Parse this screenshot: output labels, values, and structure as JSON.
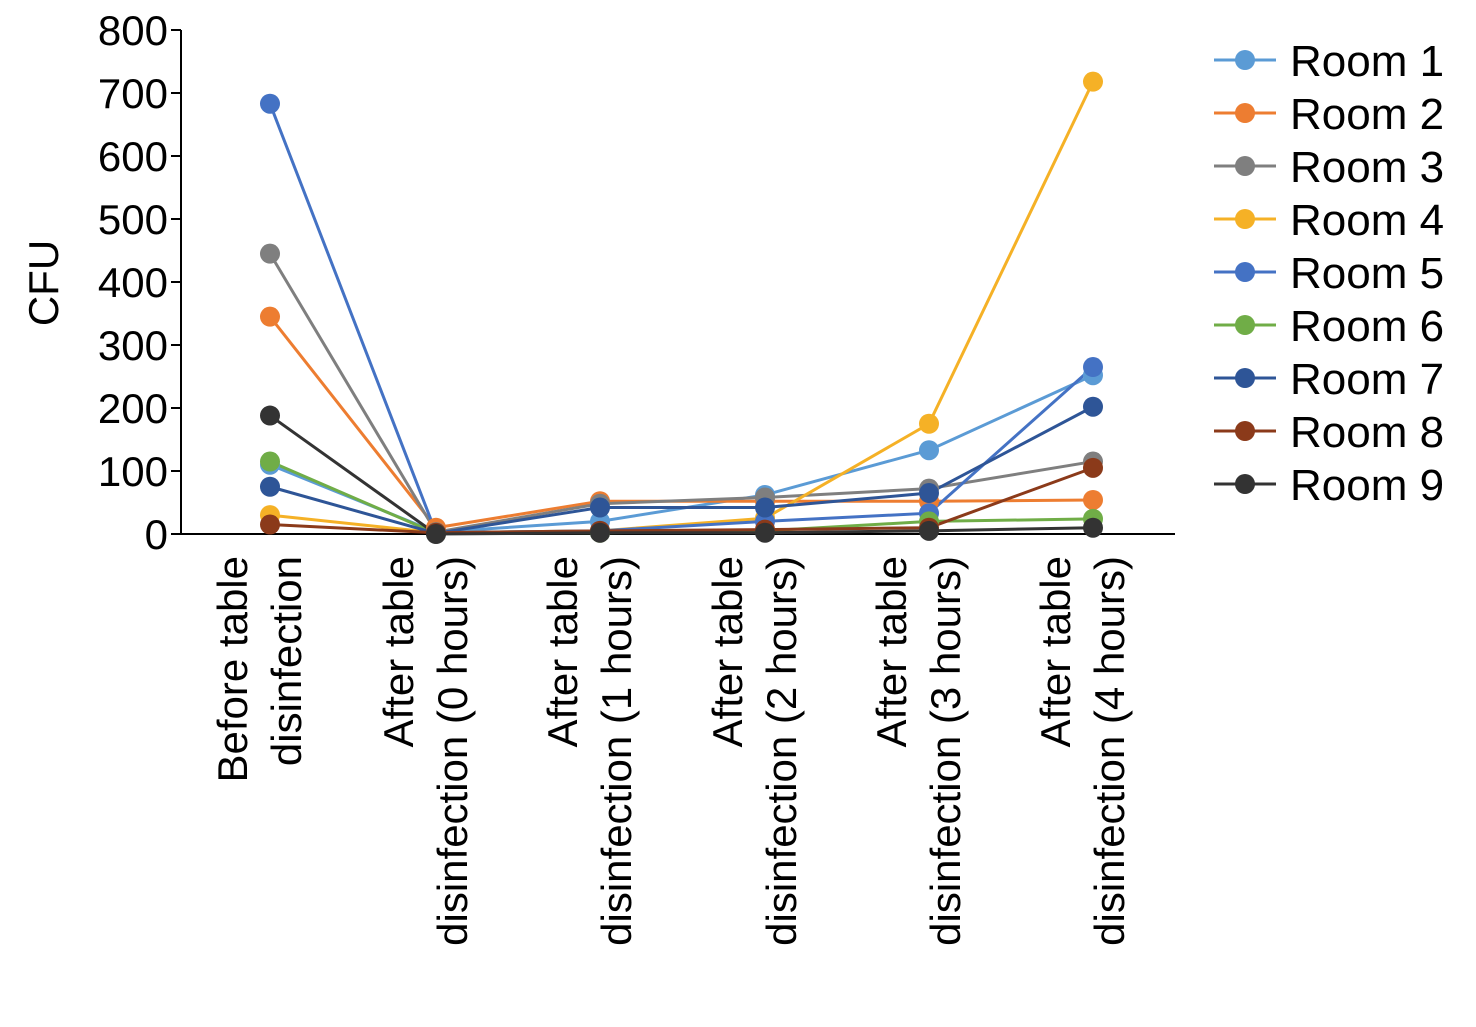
{
  "chart_data": {
    "type": "line",
    "title": "",
    "xlabel": "",
    "ylabel": "CFU",
    "ylim": [
      0,
      800
    ],
    "yticks": [
      0,
      100,
      200,
      300,
      400,
      500,
      600,
      700,
      800
    ],
    "grid": false,
    "legend_position": "right",
    "categories": [
      [
        "Before table",
        "disinfection"
      ],
      [
        "After table",
        "disinfection (0 hours)"
      ],
      [
        "After table",
        "disinfection (1 hours)"
      ],
      [
        "After table",
        "disinfection (2 hours)"
      ],
      [
        "After table",
        "disinfection (3 hours)"
      ],
      [
        "After table",
        "disinfection (4 hours)"
      ]
    ],
    "series": [
      {
        "name": "Room 1",
        "color": "#5b9bd5",
        "values": [
          110,
          3,
          20,
          62,
          133,
          252
        ]
      },
      {
        "name": "Room 2",
        "color": "#ed7d31",
        "values": [
          345,
          10,
          52,
          52,
          52,
          54
        ]
      },
      {
        "name": "Room 3",
        "color": "#7f7f7f",
        "values": [
          445,
          3,
          48,
          58,
          72,
          115
        ]
      },
      {
        "name": "Room 4",
        "color": "#f5b126",
        "values": [
          30,
          2,
          5,
          25,
          175,
          718
        ]
      },
      {
        "name": "Room 5",
        "color": "#4472c4",
        "values": [
          683,
          2,
          5,
          20,
          33,
          265
        ]
      },
      {
        "name": "Room 6",
        "color": "#70ad47",
        "values": [
          115,
          1,
          2,
          5,
          20,
          24
        ]
      },
      {
        "name": "Room 7",
        "color": "#2e5597",
        "values": [
          75,
          1,
          42,
          42,
          65,
          202
        ]
      },
      {
        "name": "Room 8",
        "color": "#8b3a1a",
        "values": [
          15,
          2,
          5,
          7,
          10,
          105
        ]
      },
      {
        "name": "Room 9",
        "color": "#333333",
        "values": [
          188,
          0,
          2,
          2,
          5,
          10
        ]
      }
    ]
  }
}
